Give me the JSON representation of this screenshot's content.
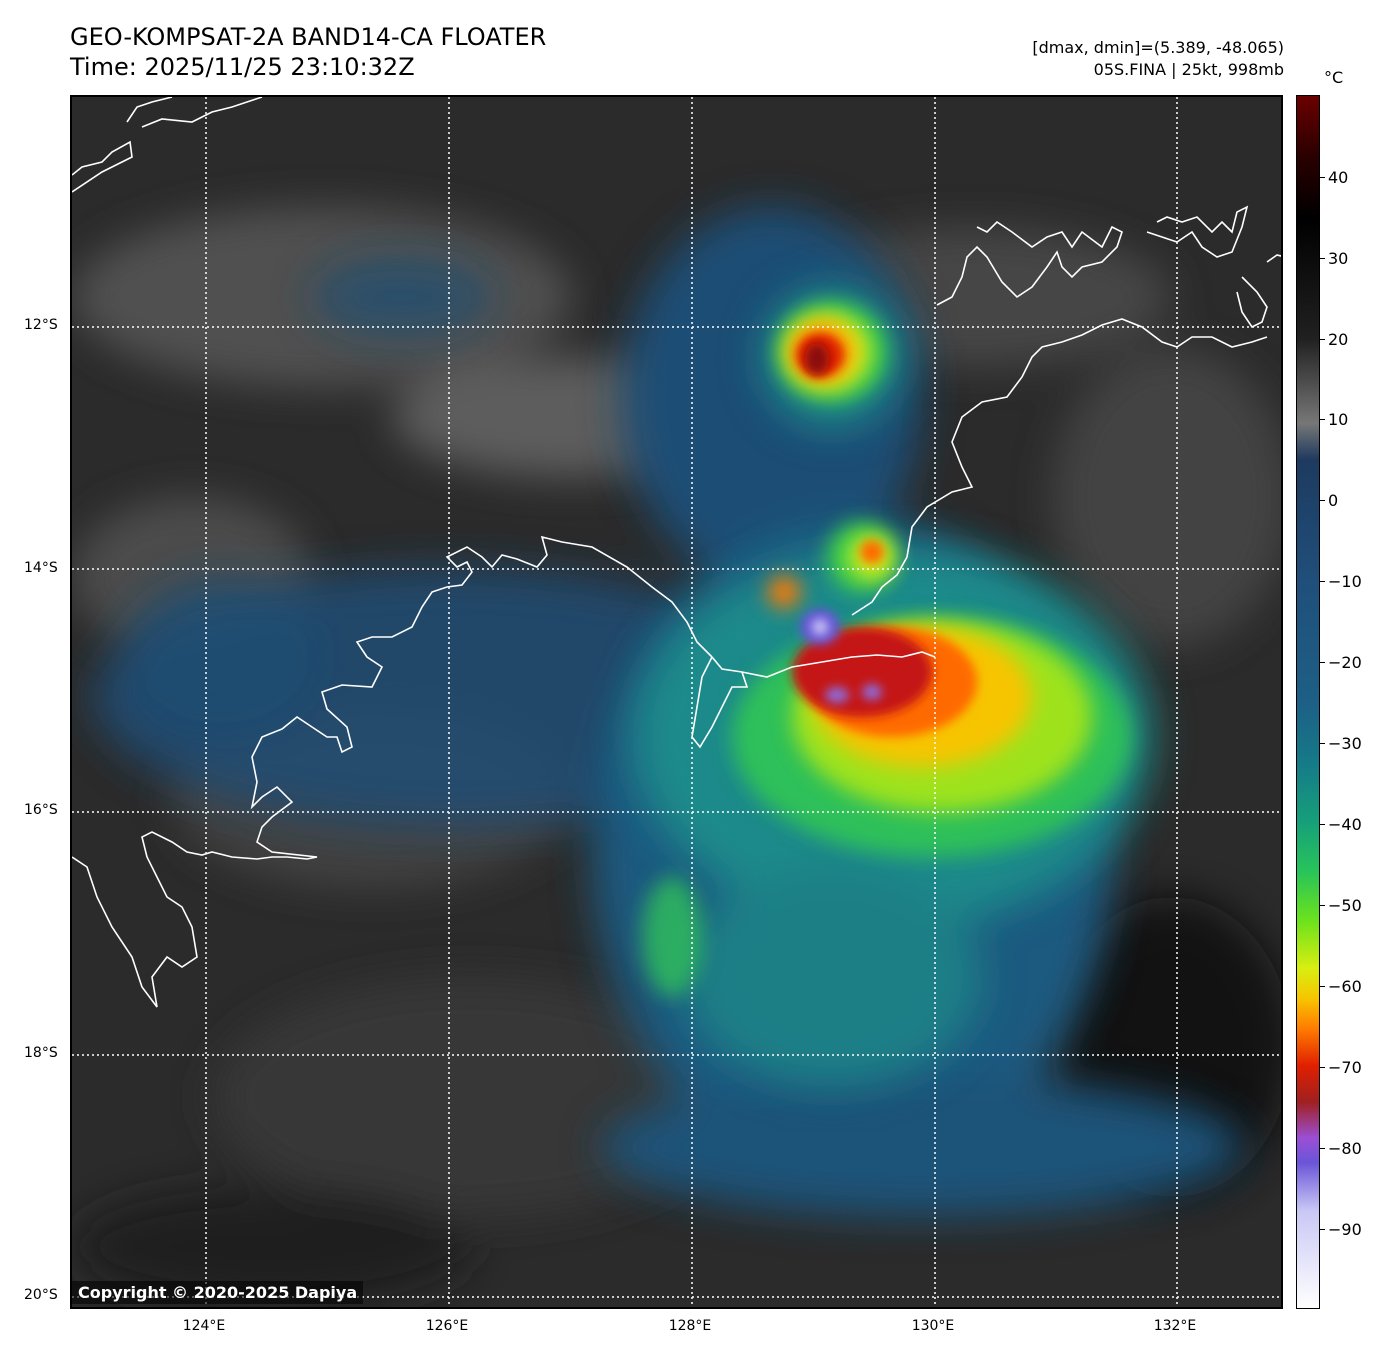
{
  "title": {
    "line1": "GEO-KOMPSAT-2A BAND14-CA FLOATER",
    "line2": "Time: 2025/11/25 23:10:32Z"
  },
  "meta": {
    "range": "[dmax, dmin]=(5.389, -48.065)",
    "storm": "05S.FINA | 25kt, 998mb"
  },
  "lat_labels": [
    "12°S",
    "14°S",
    "16°S",
    "18°S",
    "20°S"
  ],
  "lon_labels": [
    "124°E",
    "126°E",
    "128°E",
    "130°E",
    "132°E"
  ],
  "colorbar": {
    "unit": "°C",
    "ticks": [
      "40",
      "30",
      "20",
      "10",
      "0",
      "−10",
      "−20",
      "−30",
      "−40",
      "−50",
      "−60",
      "−70",
      "−80",
      "−90"
    ]
  },
  "copyright": "Copyright © 2020-2025 Dapiya"
}
